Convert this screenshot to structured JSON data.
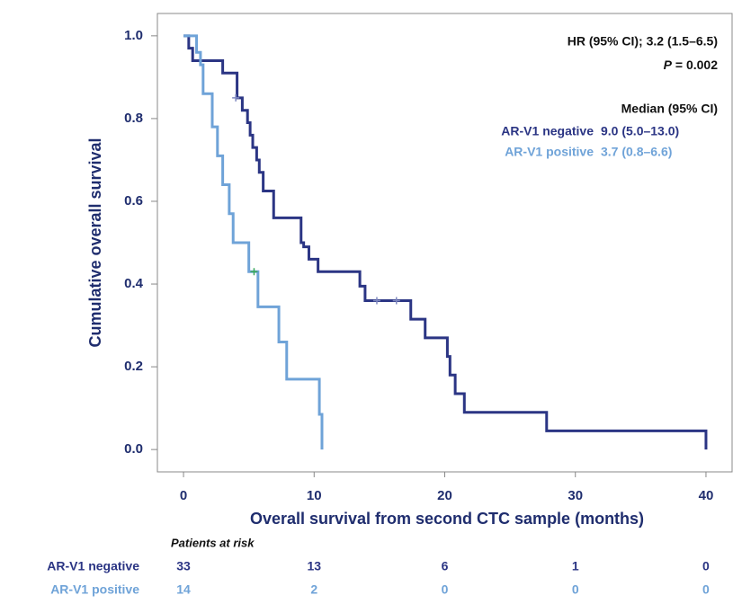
{
  "chart_data": {
    "type": "km",
    "y_label": "Cumulative overall survival",
    "x_label": "Overall survival from second CTC sample (months)",
    "xlim": [
      -2,
      42
    ],
    "ylim": [
      -0.054,
      1.054
    ],
    "xticks": [
      0,
      10,
      20,
      30,
      40
    ],
    "yticks": [
      {
        "value": 1.0,
        "label": "1.0"
      },
      {
        "value": 0.8,
        "label": "0.8"
      },
      {
        "value": 0.6,
        "label": "0.6"
      },
      {
        "value": 0.4,
        "label": "0.4"
      },
      {
        "value": 0.2,
        "label": "0.2"
      },
      {
        "value": 0.0,
        "label": "0.0"
      }
    ],
    "series": [
      {
        "name": "AR-V1 negative",
        "color": "#2b3584",
        "x": [
          0,
          0.4,
          0.7,
          3.0,
          4.1,
          4.5,
          4.9,
          5.1,
          5.3,
          5.6,
          5.8,
          6.1,
          6.9,
          9.0,
          9.2,
          9.6,
          10.3,
          13.5,
          13.9,
          17.4,
          18.5,
          20.2,
          20.4,
          20.8,
          21.5,
          27.8,
          40
        ],
        "values": [
          1.0,
          0.97,
          0.94,
          0.91,
          0.85,
          0.82,
          0.79,
          0.76,
          0.73,
          0.7,
          0.67,
          0.625,
          0.56,
          0.5,
          0.49,
          0.46,
          0.43,
          0.395,
          0.36,
          0.315,
          0.27,
          0.225,
          0.18,
          0.135,
          0.09,
          0.045,
          0.0
        ],
        "censored_x": [
          4.0,
          14.8,
          16.3
        ],
        "censored_values": [
          0.85,
          0.36,
          0.36
        ],
        "median": "9.0 (5.0–13.0)"
      },
      {
        "name": "AR-V1 positive",
        "color": "#6fa3d8",
        "x": [
          0,
          1.0,
          1.3,
          1.5,
          2.2,
          2.6,
          3.0,
          3.5,
          3.8,
          5.0,
          5.7,
          7.3,
          7.9,
          10.4,
          10.6
        ],
        "values": [
          1.0,
          0.96,
          0.93,
          0.86,
          0.78,
          0.71,
          0.64,
          0.57,
          0.5,
          0.43,
          0.345,
          0.26,
          0.17,
          0.085,
          0.0
        ],
        "censored_x": [
          5.4
        ],
        "censored_values": [
          0.43
        ],
        "median": "3.7 (0.8–6.6)"
      }
    ],
    "annotations": {
      "hr": "HR (95% CI); 3.2 (1.5–6.5)",
      "p_symbol": "P",
      "p_value": "= 0.002",
      "median_header": "Median (95% CI)"
    },
    "risk_table": {
      "title": "Patients at risk",
      "rows": [
        [
          33,
          13,
          6,
          1,
          0
        ],
        [
          14,
          2,
          0,
          0,
          0
        ]
      ]
    }
  }
}
